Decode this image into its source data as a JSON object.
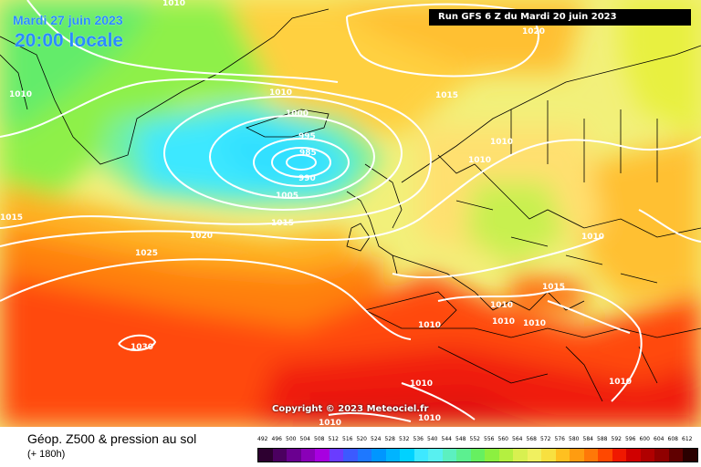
{
  "header": {
    "date": "Mardi 27 juin 2023",
    "local_time": "20:00 locale",
    "run_info": "Run GFS 6 Z du Mardi 20 juin 2023"
  },
  "copyright": "Copyright © 2023 Meteociel.fr",
  "footer": {
    "title": "Géop. Z500 & pression au sol",
    "step": "(+ 180h)"
  },
  "scale": {
    "ticks": [
      "492",
      "496",
      "500",
      "504",
      "508",
      "512",
      "516",
      "520",
      "524",
      "528",
      "532",
      "536",
      "540",
      "544",
      "548",
      "552",
      "556",
      "560",
      "564",
      "568",
      "572",
      "576",
      "580",
      "584",
      "588",
      "592",
      "596",
      "600",
      "604",
      "608",
      "612"
    ],
    "colors": [
      "#2d0030",
      "#4b0060",
      "#6a0090",
      "#8a00b8",
      "#a800e0",
      "#6a3cff",
      "#3c5aff",
      "#1e78ff",
      "#0096ff",
      "#00b4ff",
      "#00d2ff",
      "#3ee8ff",
      "#58f0f0",
      "#5cf0c0",
      "#5cf090",
      "#66f060",
      "#8cf040",
      "#b4f040",
      "#d8f050",
      "#f0f060",
      "#f8e040",
      "#ffc020",
      "#ff9c10",
      "#ff7808",
      "#ff4800",
      "#f01800",
      "#d00000",
      "#b00000",
      "#900000",
      "#600000",
      "#2a0000"
    ]
  },
  "pressure_labels": [
    {
      "text": "1010"
    },
    {
      "text": "1020"
    },
    {
      "text": "1010"
    },
    {
      "text": "1010"
    },
    {
      "text": "1015"
    },
    {
      "text": "1000"
    },
    {
      "text": "995"
    },
    {
      "text": "985"
    },
    {
      "text": "990"
    },
    {
      "text": "1005"
    },
    {
      "text": "1010"
    },
    {
      "text": "1010"
    },
    {
      "text": "1015"
    },
    {
      "text": "1015"
    },
    {
      "text": "1020"
    },
    {
      "text": "1025"
    },
    {
      "text": "1010"
    },
    {
      "text": "1015"
    },
    {
      "text": "1010"
    },
    {
      "text": "1010"
    },
    {
      "text": "1010"
    },
    {
      "text": "1010"
    },
    {
      "text": "1030"
    },
    {
      "text": "1010"
    },
    {
      "text": "1010"
    },
    {
      "text": "1010"
    },
    {
      "text": "1010"
    }
  ]
}
